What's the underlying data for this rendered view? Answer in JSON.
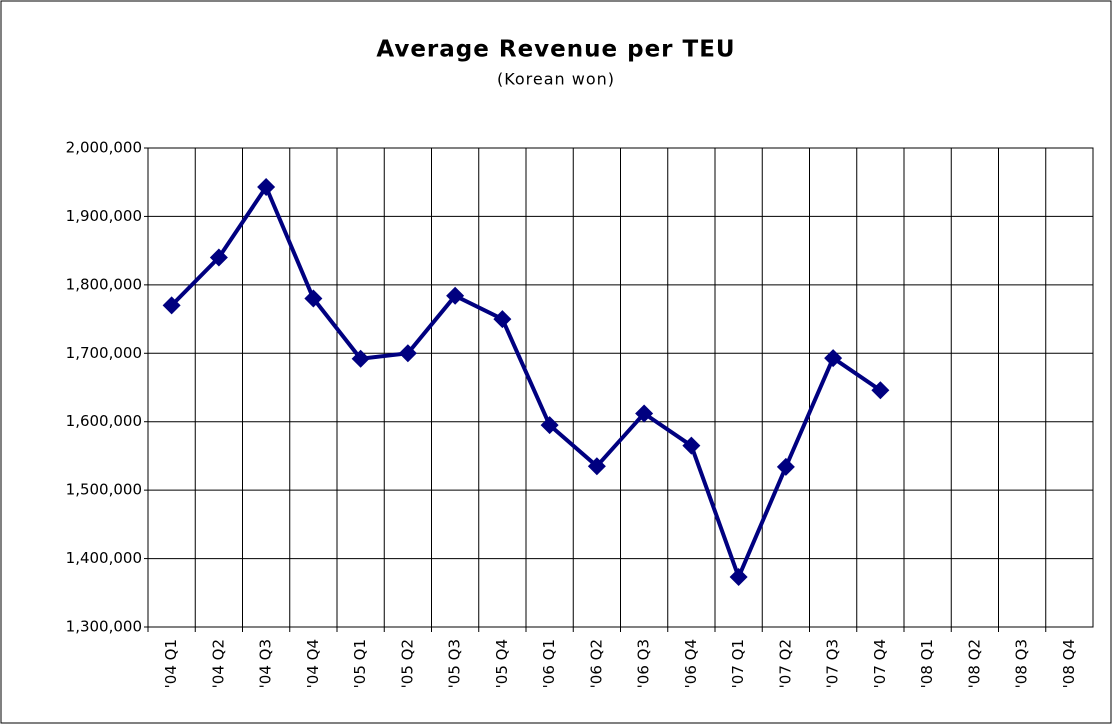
{
  "chart_data": {
    "type": "line",
    "title": "Average Revenue per TEU",
    "subtitle": "(Korean won)",
    "categories": [
      "'04 Q1",
      "'04 Q2",
      "'04 Q3",
      "'04 Q4",
      "'05 Q1",
      "'05 Q2",
      "'05 Q3",
      "'05 Q4",
      "'06 Q1",
      "'06 Q2",
      "'06 Q3",
      "'06 Q4",
      "'07 Q1",
      "'07 Q2",
      "'07 Q3",
      "'07 Q4",
      "'08 Q1",
      "'08 Q2",
      "'08 Q3",
      "'08 Q4"
    ],
    "series": [
      {
        "color": "#000080",
        "values": [
          1770000,
          1840000,
          1943000,
          1780000,
          1692000,
          1700000,
          1784000,
          1750000,
          1595000,
          1535000,
          1612000,
          1565000,
          1373000,
          1534000,
          1693000,
          1646000,
          null,
          null,
          null,
          null
        ]
      }
    ],
    "ylim": [
      1300000,
      2000000
    ],
    "yticks": [
      {
        "value": 1300000,
        "label": "1,300,000"
      },
      {
        "value": 1400000,
        "label": "1,400,000"
      },
      {
        "value": 1500000,
        "label": "1,500,000"
      },
      {
        "value": 1600000,
        "label": "1,600,000"
      },
      {
        "value": 1700000,
        "label": "1,700,000"
      },
      {
        "value": 1800000,
        "label": "1,800,000"
      },
      {
        "value": 1900000,
        "label": "1,900,000"
      },
      {
        "value": 2000000,
        "label": "2,000,000"
      }
    ],
    "grid": true
  }
}
